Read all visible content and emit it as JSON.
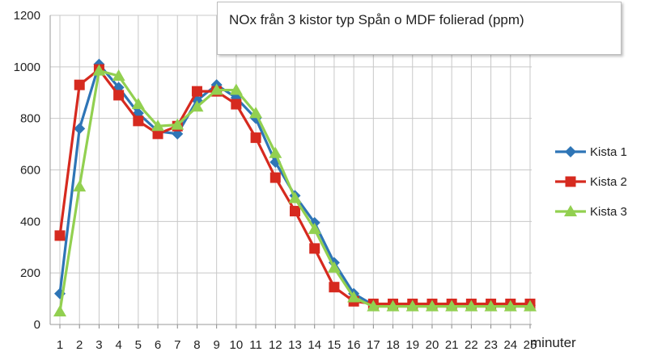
{
  "chart_data": {
    "type": "line",
    "title": "NOx från 3 kistor typ Spån o MDF folierad (ppm)",
    "xlabel": "minuter",
    "ylabel": "",
    "ylim": [
      0,
      1200
    ],
    "yticks": [
      0,
      200,
      400,
      600,
      800,
      1000,
      1200
    ],
    "x": [
      1,
      2,
      3,
      4,
      5,
      6,
      7,
      8,
      9,
      10,
      11,
      12,
      13,
      14,
      15,
      16,
      17,
      18,
      19,
      20,
      21,
      22,
      23,
      24,
      25
    ],
    "grid": true,
    "legend_position": "right",
    "series": [
      {
        "name": "Kista 1",
        "color": "#2e75b6",
        "marker": "diamond",
        "values": [
          120,
          760,
          1010,
          920,
          820,
          750,
          740,
          870,
          930,
          880,
          800,
          630,
          500,
          395,
          240,
          120,
          75,
          75,
          75,
          75,
          75,
          75,
          75,
          75,
          75
        ]
      },
      {
        "name": "Kista 2",
        "color": "#d62a1f",
        "marker": "square",
        "values": [
          345,
          930,
          990,
          890,
          790,
          740,
          770,
          905,
          905,
          855,
          725,
          570,
          440,
          295,
          145,
          90,
          80,
          80,
          80,
          80,
          80,
          80,
          80,
          80,
          80
        ]
      },
      {
        "name": "Kista 3",
        "color": "#92d050",
        "marker": "triangle",
        "values": [
          50,
          535,
          985,
          965,
          855,
          770,
          775,
          845,
          910,
          910,
          820,
          665,
          490,
          370,
          220,
          105,
          70,
          70,
          70,
          70,
          70,
          70,
          70,
          70,
          70
        ]
      }
    ]
  }
}
